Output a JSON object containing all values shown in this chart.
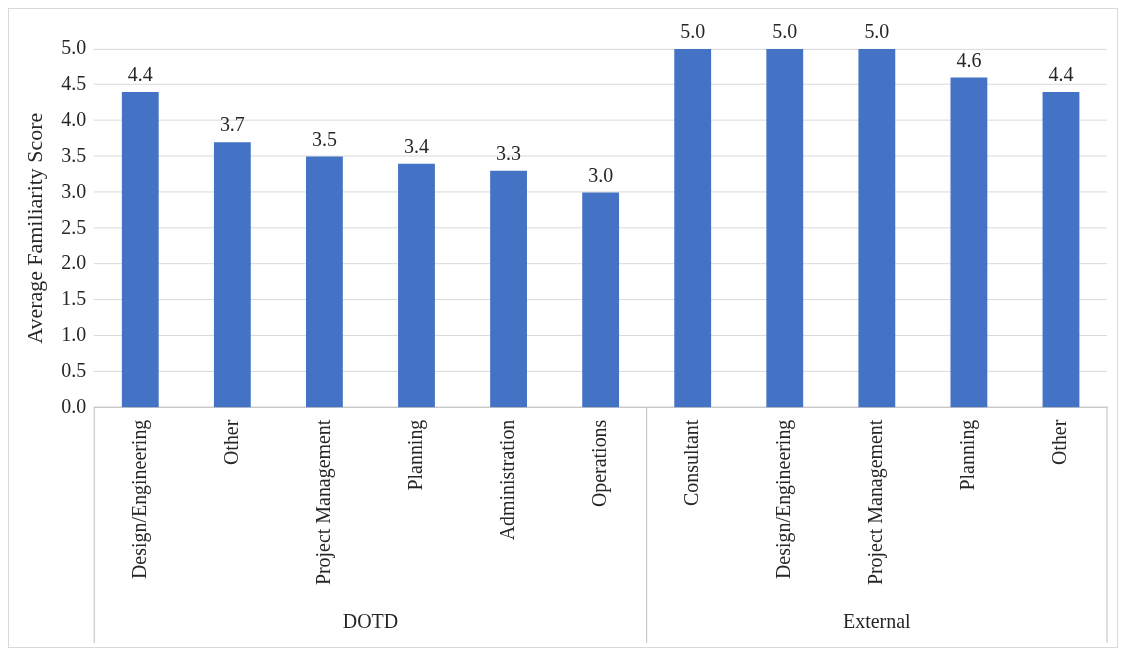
{
  "chart_data": {
    "type": "bar",
    "ylabel": "Average Familiarity Score",
    "categories": [
      "Design/Engineering",
      "Other",
      "Project Management",
      "Planning",
      "Administration",
      "Operations",
      "Consultant",
      "Design/Engineering",
      "Project Management",
      "Planning",
      "Other"
    ],
    "values": [
      4.4,
      3.7,
      3.5,
      3.4,
      3.3,
      3.0,
      5.0,
      5.0,
      5.0,
      4.6,
      4.4
    ],
    "value_labels": [
      "4.4",
      "3.7",
      "3.5",
      "3.4",
      "3.3",
      "3.0",
      "5.0",
      "5.0",
      "5.0",
      "4.6",
      "4.4"
    ],
    "color": "#4472c4",
    "grid": "y",
    "ylim": [
      0,
      5
    ],
    "yticks": [
      {
        "value": 0,
        "label": "0.0"
      },
      {
        "value": 0.5,
        "label": "0.5"
      },
      {
        "value": 1,
        "label": "1.0"
      },
      {
        "value": 1.5,
        "label": "1.5"
      },
      {
        "value": 2,
        "label": "2.0"
      },
      {
        "value": 2.5,
        "label": "2.5"
      },
      {
        "value": 3,
        "label": "3.0"
      },
      {
        "value": 3.5,
        "label": "3.5"
      },
      {
        "value": 4,
        "label": "4.0"
      },
      {
        "value": 4.5,
        "label": "4.5"
      },
      {
        "value": 5,
        "label": "5.0"
      }
    ],
    "annotations": [
      "DOTD",
      "External"
    ]
  }
}
